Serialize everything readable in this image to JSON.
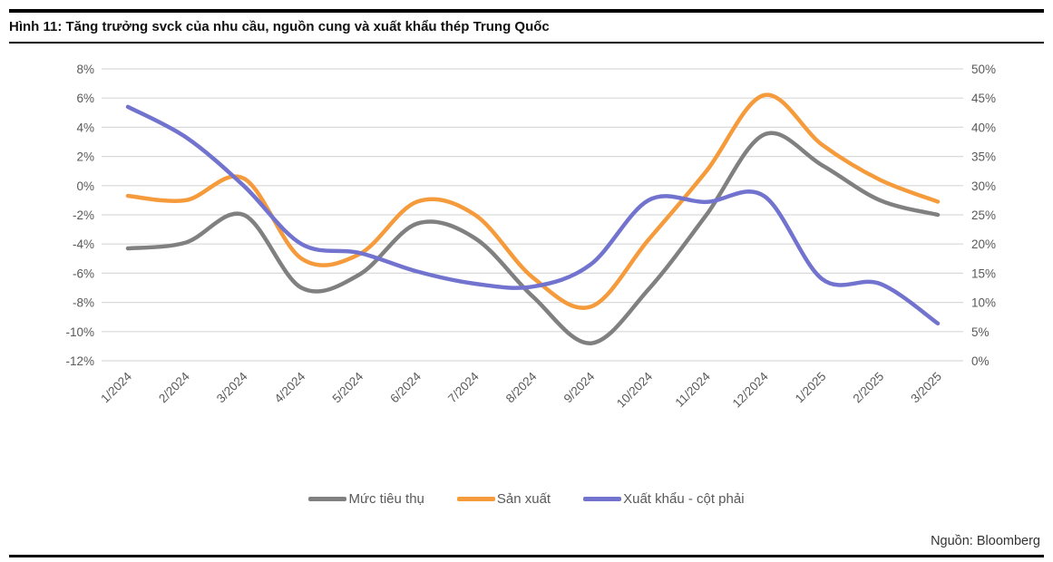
{
  "header": {
    "title": "Hình 11: Tăng trưởng svck của nhu cầu, nguồn cung và xuất khẩu thép Trung Quốc"
  },
  "footer": {
    "source": "Nguồn: Bloomberg"
  },
  "colors": {
    "consumption": "#808080",
    "production": "#F59B3B",
    "export": "#7173CF",
    "gridline": "#D9D9D9",
    "axis_text": "#595959"
  },
  "chart_data": {
    "type": "line",
    "title": "",
    "xlabel": "",
    "ylabel": "",
    "grid": true,
    "legend_position": "bottom",
    "categories": [
      "1/2024",
      "2/2024",
      "3/2024",
      "4/2024",
      "5/2024",
      "6/2024",
      "7/2024",
      "8/2024",
      "9/2024",
      "10/2024",
      "11/2024",
      "12/2024",
      "1/2025",
      "2/2025",
      "3/2025"
    ],
    "left_axis": {
      "min": -12,
      "max": 8,
      "step": 2,
      "format": "percent"
    },
    "right_axis": {
      "min": 0,
      "max": 50,
      "step": 5,
      "format": "percent"
    },
    "series": [
      {
        "name": "Mức tiêu thụ",
        "axis": "left",
        "color": "#808080",
        "values": [
          -4.3,
          -3.9,
          -2.0,
          -7.0,
          -6.1,
          -2.6,
          -3.6,
          -7.6,
          -10.8,
          -7.1,
          -2.0,
          3.5,
          1.4,
          -1.0,
          -2.0
        ]
      },
      {
        "name": "Sản xuất",
        "axis": "left",
        "color": "#F59B3B",
        "values": [
          -0.7,
          -1.0,
          0.5,
          -5.0,
          -4.7,
          -1.1,
          -2.0,
          -6.3,
          -8.3,
          -3.7,
          1.0,
          6.2,
          2.8,
          0.4,
          -1.1
        ]
      },
      {
        "name": "Xuất khẩu - cột phải",
        "axis": "right",
        "color": "#7173CF",
        "values": [
          43.5,
          38.3,
          30.0,
          20.0,
          18.5,
          15.3,
          13.2,
          12.7,
          16.5,
          27.5,
          27.2,
          28.2,
          14.0,
          13.2,
          6.4
        ]
      }
    ]
  }
}
